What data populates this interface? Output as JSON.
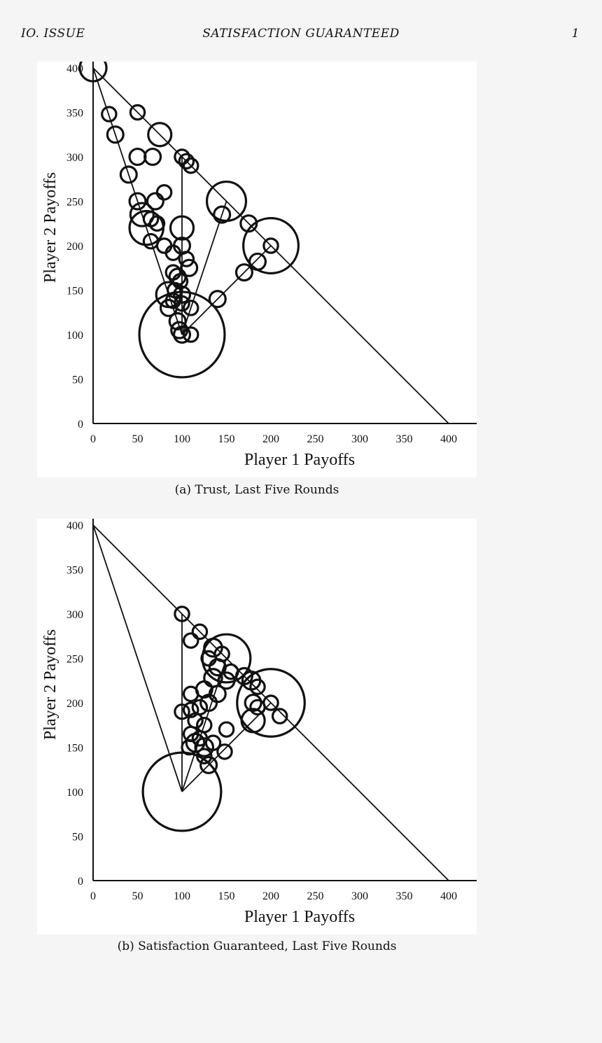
{
  "header": {
    "left": "IO. ISSUE",
    "center": "SATISFACTION GUARANTEED",
    "right": "1"
  },
  "chart_data": [
    {
      "type": "scatter",
      "subtype": "bubble",
      "caption": "(a) Trust, Last Five Rounds",
      "xlabel": "Player 1 Payoffs",
      "ylabel": "Player 2 Payoffs",
      "xlim": [
        0,
        430
      ],
      "ylim": [
        0,
        430
      ],
      "xticks": [
        0,
        50,
        100,
        150,
        200,
        250,
        300,
        350,
        400
      ],
      "yticks": [
        0,
        50,
        100,
        150,
        200,
        250,
        300,
        350,
        400
      ],
      "grid": false,
      "lines": [
        {
          "x": [
            0,
            400
          ],
          "y": [
            400,
            0
          ]
        },
        {
          "x": [
            0,
            100
          ],
          "y": [
            400,
            100
          ]
        },
        {
          "x": [
            100,
            100
          ],
          "y": [
            100,
            300
          ]
        },
        {
          "x": [
            100,
            150
          ],
          "y": [
            100,
            250
          ]
        },
        {
          "x": [
            100,
            200
          ],
          "y": [
            100,
            200
          ]
        }
      ],
      "points": [
        {
          "x": 0,
          "y": 400,
          "r": 15
        },
        {
          "x": 18,
          "y": 348,
          "r": 8
        },
        {
          "x": 25,
          "y": 325,
          "r": 9
        },
        {
          "x": 50,
          "y": 350,
          "r": 8
        },
        {
          "x": 75,
          "y": 325,
          "r": 13
        },
        {
          "x": 50,
          "y": 300,
          "r": 9
        },
        {
          "x": 67,
          "y": 300,
          "r": 9
        },
        {
          "x": 40,
          "y": 280,
          "r": 9
        },
        {
          "x": 100,
          "y": 300,
          "r": 8
        },
        {
          "x": 105,
          "y": 295,
          "r": 8
        },
        {
          "x": 110,
          "y": 290,
          "r": 8
        },
        {
          "x": 50,
          "y": 250,
          "r": 9
        },
        {
          "x": 80,
          "y": 260,
          "r": 8
        },
        {
          "x": 70,
          "y": 250,
          "r": 9
        },
        {
          "x": 55,
          "y": 235,
          "r": 13
        },
        {
          "x": 60,
          "y": 220,
          "r": 19
        },
        {
          "x": 65,
          "y": 230,
          "r": 8
        },
        {
          "x": 72,
          "y": 225,
          "r": 8
        },
        {
          "x": 65,
          "y": 205,
          "r": 8
        },
        {
          "x": 100,
          "y": 220,
          "r": 13
        },
        {
          "x": 150,
          "y": 250,
          "r": 22
        },
        {
          "x": 145,
          "y": 235,
          "r": 9
        },
        {
          "x": 175,
          "y": 225,
          "r": 9
        },
        {
          "x": 200,
          "y": 200,
          "r": 31
        },
        {
          "x": 200,
          "y": 200,
          "r": 8
        },
        {
          "x": 185,
          "y": 182,
          "r": 9
        },
        {
          "x": 170,
          "y": 170,
          "r": 9
        },
        {
          "x": 80,
          "y": 200,
          "r": 8
        },
        {
          "x": 90,
          "y": 192,
          "r": 8
        },
        {
          "x": 100,
          "y": 200,
          "r": 9
        },
        {
          "x": 105,
          "y": 185,
          "r": 8
        },
        {
          "x": 108,
          "y": 175,
          "r": 9
        },
        {
          "x": 90,
          "y": 170,
          "r": 8
        },
        {
          "x": 95,
          "y": 165,
          "r": 9
        },
        {
          "x": 98,
          "y": 160,
          "r": 8
        },
        {
          "x": 92,
          "y": 150,
          "r": 8
        },
        {
          "x": 85,
          "y": 145,
          "r": 14
        },
        {
          "x": 100,
          "y": 145,
          "r": 9
        },
        {
          "x": 90,
          "y": 138,
          "r": 8
        },
        {
          "x": 100,
          "y": 135,
          "r": 8
        },
        {
          "x": 85,
          "y": 130,
          "r": 9
        },
        {
          "x": 110,
          "y": 130,
          "r": 8
        },
        {
          "x": 140,
          "y": 140,
          "r": 9
        },
        {
          "x": 95,
          "y": 115,
          "r": 9
        },
        {
          "x": 100,
          "y": 100,
          "r": 48
        },
        {
          "x": 100,
          "y": 100,
          "r": 9
        },
        {
          "x": 110,
          "y": 100,
          "r": 8
        },
        {
          "x": 97,
          "y": 105,
          "r": 9
        }
      ]
    },
    {
      "type": "scatter",
      "subtype": "bubble",
      "caption": "(b) Satisfaction Guaranteed, Last Five Rounds",
      "xlabel": "Player 1 Payoffs",
      "ylabel": "Player 2 Payoffs",
      "xlim": [
        0,
        430
      ],
      "ylim": [
        0,
        430
      ],
      "xticks": [
        0,
        50,
        100,
        150,
        200,
        250,
        300,
        350,
        400
      ],
      "yticks": [
        0,
        50,
        100,
        150,
        200,
        250,
        300,
        350,
        400
      ],
      "grid": false,
      "lines": [
        {
          "x": [
            0,
            400
          ],
          "y": [
            400,
            0
          ]
        },
        {
          "x": [
            0,
            100
          ],
          "y": [
            400,
            100
          ]
        },
        {
          "x": [
            100,
            100
          ],
          "y": [
            100,
            300
          ]
        },
        {
          "x": [
            100,
            150
          ],
          "y": [
            100,
            250
          ]
        },
        {
          "x": [
            100,
            200
          ],
          "y": [
            100,
            200
          ]
        }
      ],
      "points": [
        {
          "x": 100,
          "y": 300,
          "r": 8
        },
        {
          "x": 120,
          "y": 280,
          "r": 8
        },
        {
          "x": 110,
          "y": 270,
          "r": 8
        },
        {
          "x": 150,
          "y": 250,
          "r": 27
        },
        {
          "x": 200,
          "y": 200,
          "r": 38
        },
        {
          "x": 135,
          "y": 262,
          "r": 10
        },
        {
          "x": 145,
          "y": 255,
          "r": 8
        },
        {
          "x": 130,
          "y": 250,
          "r": 8
        },
        {
          "x": 140,
          "y": 240,
          "r": 9
        },
        {
          "x": 155,
          "y": 235,
          "r": 8
        },
        {
          "x": 150,
          "y": 225,
          "r": 9
        },
        {
          "x": 135,
          "y": 228,
          "r": 10
        },
        {
          "x": 170,
          "y": 230,
          "r": 9
        },
        {
          "x": 178,
          "y": 225,
          "r": 10
        },
        {
          "x": 185,
          "y": 218,
          "r": 8
        },
        {
          "x": 125,
          "y": 215,
          "r": 9
        },
        {
          "x": 140,
          "y": 210,
          "r": 9
        },
        {
          "x": 110,
          "y": 210,
          "r": 8
        },
        {
          "x": 180,
          "y": 200,
          "r": 9
        },
        {
          "x": 200,
          "y": 200,
          "r": 8
        },
        {
          "x": 185,
          "y": 195,
          "r": 8
        },
        {
          "x": 210,
          "y": 185,
          "r": 8
        },
        {
          "x": 180,
          "y": 180,
          "r": 13
        },
        {
          "x": 100,
          "y": 190,
          "r": 8
        },
        {
          "x": 110,
          "y": 192,
          "r": 8
        },
        {
          "x": 120,
          "y": 195,
          "r": 8
        },
        {
          "x": 130,
          "y": 200,
          "r": 9
        },
        {
          "x": 115,
          "y": 180,
          "r": 8
        },
        {
          "x": 125,
          "y": 175,
          "r": 8
        },
        {
          "x": 150,
          "y": 170,
          "r": 8
        },
        {
          "x": 110,
          "y": 165,
          "r": 8
        },
        {
          "x": 120,
          "y": 160,
          "r": 8
        },
        {
          "x": 108,
          "y": 150,
          "r": 8
        },
        {
          "x": 115,
          "y": 155,
          "r": 10
        },
        {
          "x": 125,
          "y": 150,
          "r": 10
        },
        {
          "x": 135,
          "y": 155,
          "r": 8
        },
        {
          "x": 148,
          "y": 145,
          "r": 8
        },
        {
          "x": 125,
          "y": 140,
          "r": 8
        },
        {
          "x": 130,
          "y": 130,
          "r": 9
        },
        {
          "x": 100,
          "y": 100,
          "r": 44
        }
      ]
    }
  ]
}
